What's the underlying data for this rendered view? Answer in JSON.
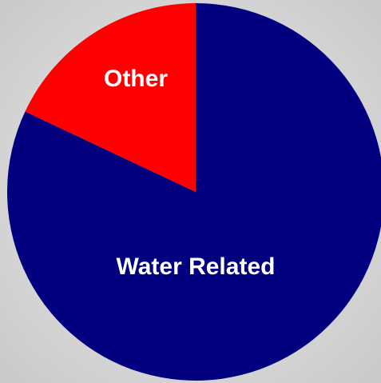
{
  "chart_data": {
    "type": "pie",
    "categories": [
      "Water Related",
      "Other"
    ],
    "values": [
      82,
      18
    ],
    "colors": [
      "#02007f",
      "#fe0000"
    ]
  }
}
